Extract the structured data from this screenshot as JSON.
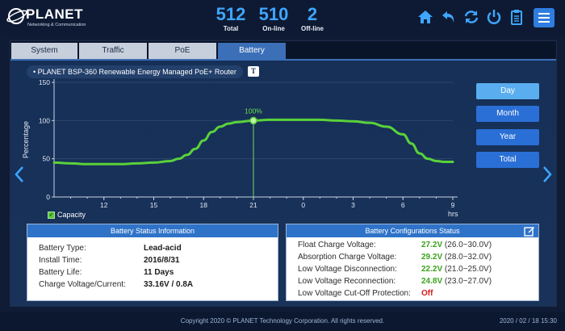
{
  "brand": {
    "name": "PLANET",
    "tagline": "Networking & Communication"
  },
  "stats": [
    {
      "value": "512",
      "label": "Total"
    },
    {
      "value": "510",
      "label": "On-line"
    },
    {
      "value": "2",
      "label": "Off-line"
    }
  ],
  "toolbar_icons": [
    "home-icon",
    "back-icon",
    "refresh-icon",
    "power-icon",
    "clipboard-icon",
    "menu-icon"
  ],
  "tabs": [
    {
      "label": "System"
    },
    {
      "label": "Traffic"
    },
    {
      "label": "PoE"
    },
    {
      "label": "Battery",
      "active": true
    }
  ],
  "device": {
    "title": "PLANET BSP-360 Renewable Energy Managed PoE+ Router",
    "bullet": "•",
    "text_icon": "T"
  },
  "range_buttons": [
    {
      "label": "Day",
      "active": true
    },
    {
      "label": "Month"
    },
    {
      "label": "Year"
    },
    {
      "label": "Total"
    }
  ],
  "colors": {
    "accent": "#2f73c9",
    "line": "#5ad13a",
    "value_green": "#3aa31c",
    "value_red": "#d21f1f"
  },
  "chart_data": {
    "type": "line",
    "ylabel": "Percentage",
    "xlabel": "hrs",
    "ylim": [
      0,
      150
    ],
    "yticks": [
      0,
      50,
      100,
      150
    ],
    "x_ticks": [
      "12",
      "15",
      "18",
      "21",
      "0",
      "3",
      "6",
      "9"
    ],
    "series": [
      {
        "name": "Capacity",
        "x": [
          9,
          10,
          11,
          12,
          13,
          14,
          15,
          16,
          16.5,
          17,
          17.5,
          18,
          18.5,
          19,
          19.5,
          20,
          21,
          22,
          23,
          24,
          25,
          26,
          27,
          28,
          29,
          30,
          30.5,
          31,
          31.5,
          32,
          32.5,
          33
        ],
        "y": [
          45,
          44,
          43,
          43,
          43,
          44,
          45,
          47,
          50,
          55,
          63,
          74,
          85,
          92,
          96,
          98,
          100,
          101,
          101,
          101,
          101,
          100,
          99,
          97,
          92,
          82,
          70,
          57,
          50,
          47,
          46,
          46
        ]
      }
    ],
    "highlight": {
      "x": 21,
      "y": 100,
      "label": "100%"
    },
    "grid": true
  },
  "legend": {
    "label": "Capacity",
    "check": "✓"
  },
  "battery_status": {
    "title": "Battery Status Information",
    "rows": [
      {
        "label": "Battery Type:",
        "value": "Lead-acid"
      },
      {
        "label": "Install Time:",
        "value": "2016/8/31"
      },
      {
        "label": "Battery Life:",
        "value": "11 Days"
      },
      {
        "label": "Charge Voltage/Current:",
        "value": "33.16V / 0.8A"
      }
    ]
  },
  "battery_config": {
    "title": "Battery Configurations Status",
    "rows": [
      {
        "label": "Float Charge Voltage:",
        "value": "27.2V",
        "range": "(26.0~30.0V)"
      },
      {
        "label": "Absorption Charge Voltage:",
        "value": "29.2V",
        "range": "(28.0~32.0V)"
      },
      {
        "label": "Low Voltage Disconnection:",
        "value": "22.2V",
        "range": "(21.0~25.0V)"
      },
      {
        "label": "Low Voltage Reconnection:",
        "value": "24.8V",
        "range": "(23.0~27.0V)"
      },
      {
        "label": "Low Voltage Cut-Off Protection:",
        "value": "Off",
        "range": ""
      }
    ]
  },
  "footer": {
    "copyright": "Copyright 2020 © PLANET Technology Corporation. All rights reserved.",
    "datetime": "2020 / 02 / 18 15:30"
  }
}
